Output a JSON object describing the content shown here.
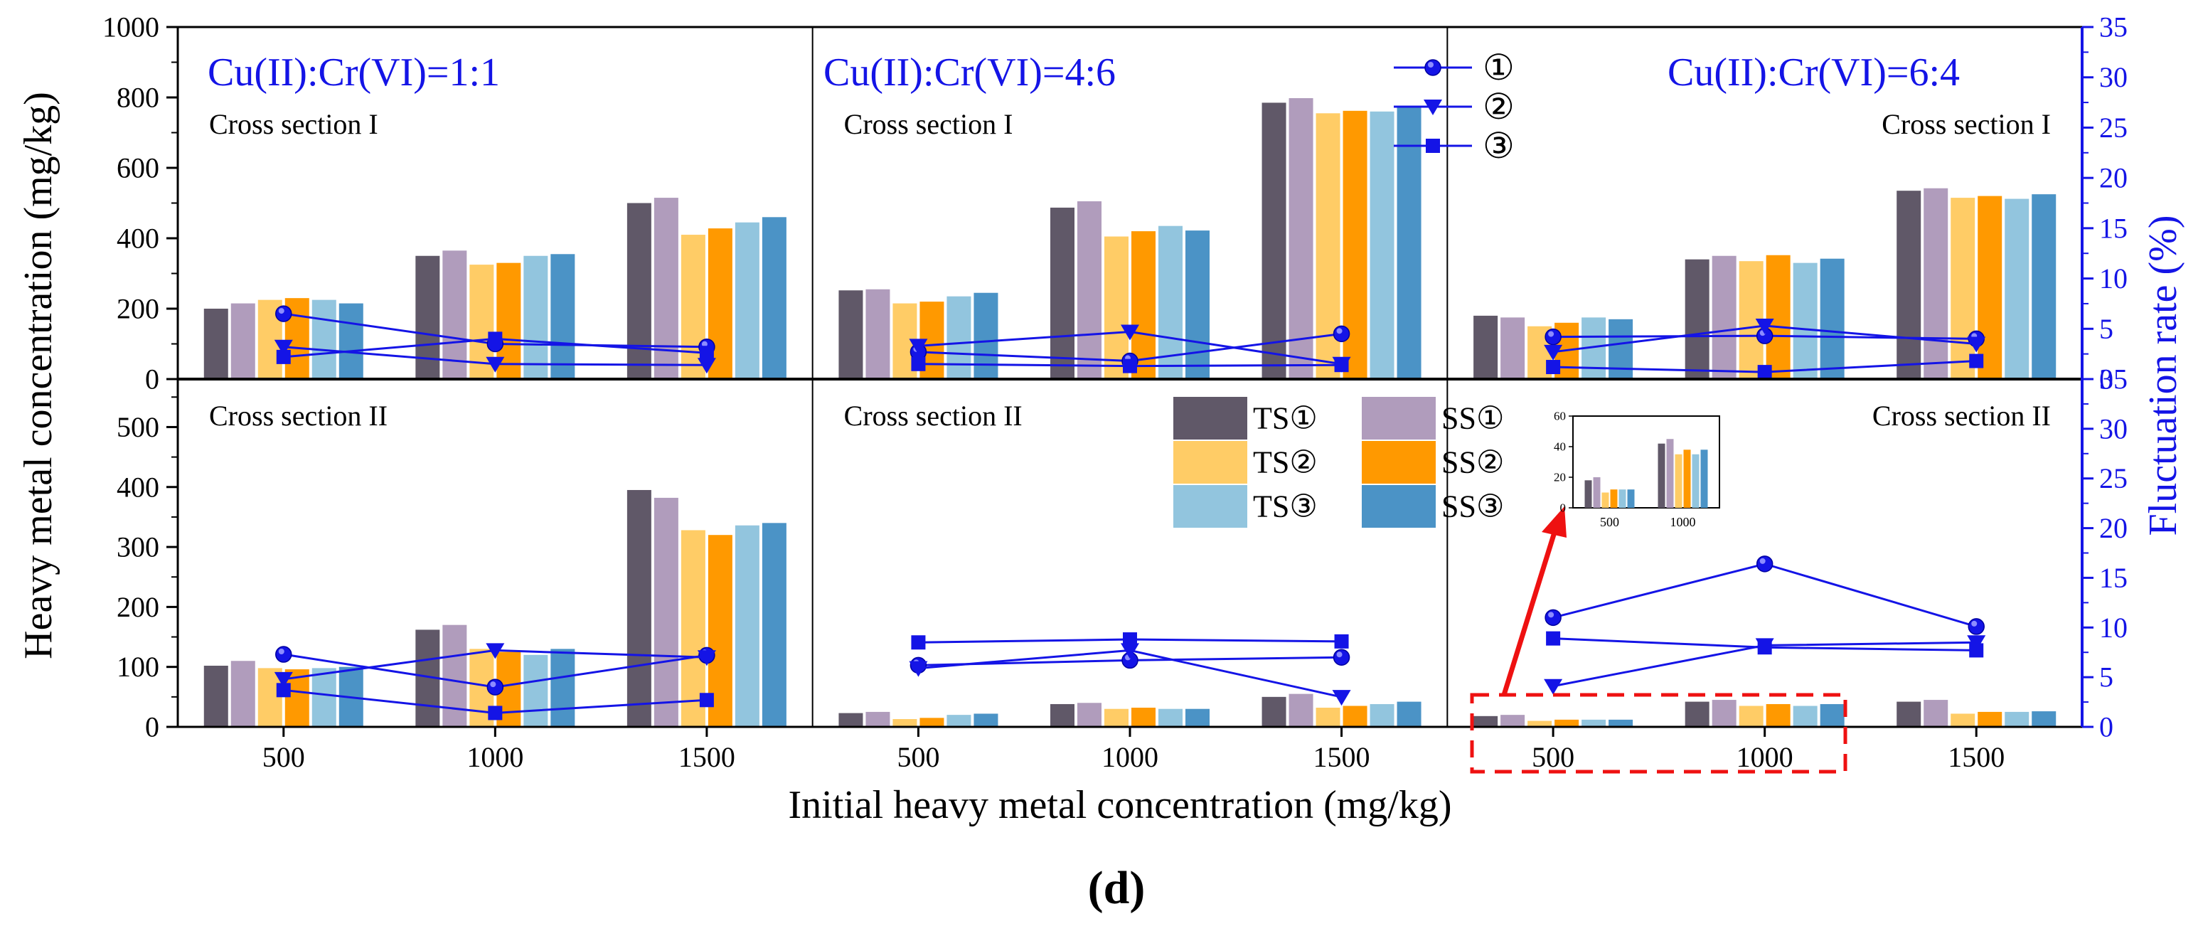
{
  "figure_label": "(d)",
  "colors": {
    "TS1": "#605868",
    "SS1": "#B09CBC",
    "TS2": "#FFCC66",
    "SS2": "#FF9900",
    "TS3": "#92C5DE",
    "SS3": "#4B93C6",
    "fluct": "#1414E6",
    "arrow": "#EE1111",
    "box": "#EE1111"
  },
  "chart_data": {
    "type": "bar",
    "xlabel": "Initial heavy metal concentration (mg/kg)",
    "ylabel": "Heavy metal concentration (mg/kg)",
    "ylabel_right": "Fluctuation rate (%)",
    "categories": [
      "500",
      "1000",
      "1500"
    ],
    "series_names": [
      "TS①",
      "SS①",
      "TS②",
      "SS②",
      "TS③",
      "SS③"
    ],
    "line_series_names": [
      "①",
      "②",
      "③"
    ],
    "top_axis": {
      "ylim": [
        0,
        1000
      ],
      "ticks": [
        "0",
        "200",
        "400",
        "600",
        "800",
        "1000"
      ]
    },
    "bottom_axis": {
      "ylim": [
        0,
        580
      ],
      "ticks": [
        "0",
        "100",
        "200",
        "300",
        "400",
        "500"
      ]
    },
    "right_axis": {
      "ylim": [
        0,
        35
      ],
      "ticks": [
        "0",
        "5",
        "10",
        "15",
        "20",
        "25",
        "30",
        "35"
      ]
    },
    "panels": [
      {
        "ratio": "Cu(II):Cr(VI)=1:1",
        "top": {
          "section": "Cross section I",
          "bars": [
            [
              200,
              215,
              225,
              230,
              225,
              215
            ],
            [
              350,
              365,
              325,
              330,
              350,
              355
            ],
            [
              500,
              515,
              410,
              428,
              445,
              460
            ]
          ],
          "fluct": [
            [
              6.5,
              3.2,
              2.2
            ],
            [
              3.5,
              1.5,
              4.0
            ],
            [
              3.2,
              1.4,
              2.6
            ]
          ]
        },
        "bottom": {
          "section": "Cross section II",
          "bars": [
            [
              102,
              110,
              98,
              96,
              98,
              100
            ],
            [
              162,
              170,
              130,
              125,
              120,
              130
            ],
            [
              395,
              382,
              328,
              320,
              336,
              340
            ]
          ],
          "fluct": [
            [
              7.3,
              4.8,
              3.7
            ],
            [
              4.0,
              7.7,
              1.4
            ],
            [
              7.2,
              7.0,
              2.7
            ]
          ]
        }
      },
      {
        "ratio": "Cu(II):Cr(VI)=4:6",
        "top": {
          "section": "Cross section I",
          "bars": [
            [
              252,
              255,
              215,
              220,
              235,
              245
            ],
            [
              487,
              505,
              405,
              420,
              435,
              422
            ],
            [
              785,
              798,
              755,
              762,
              760,
              774
            ]
          ],
          "fluct": [
            [
              2.7,
              3.3,
              1.5
            ],
            [
              1.8,
              4.7,
              1.3
            ],
            [
              4.5,
              1.5,
              1.4
            ]
          ]
        },
        "bottom": {
          "section": "Cross section II",
          "bars": [
            [
              23,
              25,
              13,
              15,
              20,
              22
            ],
            [
              38,
              40,
              30,
              32,
              30,
              30
            ],
            [
              50,
              55,
              32,
              35,
              38,
              42
            ]
          ],
          "fluct": [
            [
              6.2,
              5.9,
              8.5
            ],
            [
              6.7,
              7.7,
              8.8
            ],
            [
              7.0,
              3.0,
              8.6
            ]
          ]
        }
      },
      {
        "ratio": "Cu(II):Cr(VI)=6:4",
        "top": {
          "section": "Cross section I",
          "bars": [
            [
              180,
              175,
              150,
              160,
              175,
              170
            ],
            [
              340,
              350,
              335,
              352,
              330,
              342
            ],
            [
              535,
              542,
              515,
              520,
              512,
              525
            ]
          ],
          "fluct": [
            [
              4.2,
              2.7,
              1.2
            ],
            [
              4.3,
              5.3,
              0.7
            ],
            [
              4.0,
              3.5,
              1.8
            ]
          ]
        },
        "bottom": {
          "section": "Cross section II",
          "bars": [
            [
              18,
              20,
              10,
              12,
              12,
              12
            ],
            [
              42,
              45,
              35,
              38,
              35,
              38
            ],
            [
              42,
              45,
              22,
              25,
              25,
              26
            ]
          ],
          "fluct": [
            [
              11.0,
              4.1,
              8.9
            ],
            [
              16.4,
              8.2,
              8.0
            ],
            [
              10.1,
              8.5,
              7.7
            ]
          ]
        }
      }
    ],
    "inset": {
      "categories": [
        "500",
        "1000"
      ],
      "ylim": [
        0,
        60
      ],
      "ticks": [
        "0",
        "20",
        "40",
        "60"
      ],
      "bars": [
        [
          18,
          20,
          10,
          12,
          12,
          12
        ],
        [
          42,
          45,
          35,
          38,
          35,
          38
        ]
      ]
    }
  }
}
